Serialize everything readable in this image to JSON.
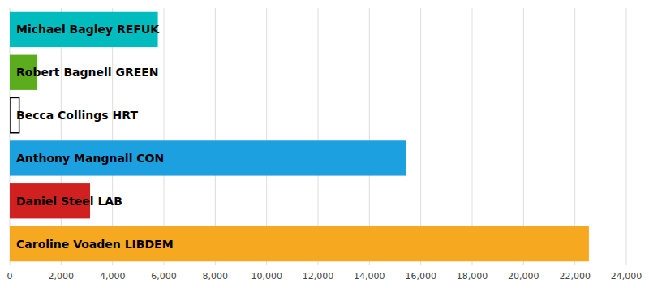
{
  "chart_data": {
    "type": "bar",
    "orientation": "horizontal",
    "categories": [
      "Michael Bagley REFUK",
      "Robert Bagnell GREEN",
      "Becca Collings HRT",
      "Anthony Mangnall CON",
      "Daniel Steel LAB",
      "Caroline Voaden LIBDEM"
    ],
    "values": [
      5765,
      1076,
      368,
      15418,
      3127,
      22544
    ],
    "colors": [
      "#00BCBE",
      "#5BAD1E",
      "#FFFFFF",
      "#1DA0E0",
      "#D02020",
      "#F5A820"
    ],
    "xlim": [
      0,
      24000
    ],
    "xticks": [
      0,
      {
        "value": 2000,
        "label": "2,000"
      },
      {
        "value": 4000,
        "label": "4,000"
      },
      {
        "value": 6000,
        "label": "6,000"
      },
      {
        "value": 8000,
        "label": "8,000"
      },
      {
        "value": 10000,
        "label": "10,000"
      },
      {
        "value": 12000,
        "label": "12,000"
      },
      {
        "value": 14000,
        "label": "14,000"
      },
      {
        "value": 16000,
        "label": "16,000"
      },
      {
        "value": 18000,
        "label": "18,000"
      },
      {
        "value": 20000,
        "label": "20,000"
      },
      {
        "value": 22000,
        "label": "22,000"
      },
      {
        "value": 24000,
        "label": "24,000"
      }
    ],
    "grid": true
  }
}
